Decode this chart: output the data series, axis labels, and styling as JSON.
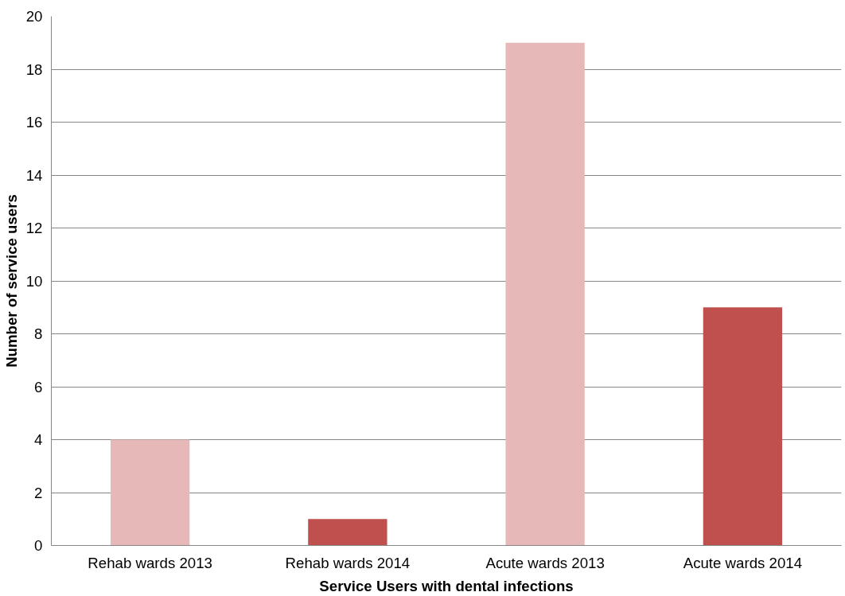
{
  "chart_data": {
    "type": "bar",
    "xlabel": "Service Users with dental infections",
    "ylabel": "Number of service users",
    "categories": [
      "Rehab wards 2013",
      "Rehab wards 2014",
      "Acute wards 2013",
      "Acute wards 2014"
    ],
    "values": [
      4,
      1,
      19,
      9
    ],
    "colors": [
      "#e6b9b8",
      "#c0504d",
      "#e6b9b8",
      "#c0504d"
    ],
    "ylim": [
      0,
      20
    ],
    "yticks": [
      0,
      2,
      4,
      6,
      8,
      10,
      12,
      14,
      16,
      18,
      20
    ],
    "grid": "y"
  }
}
